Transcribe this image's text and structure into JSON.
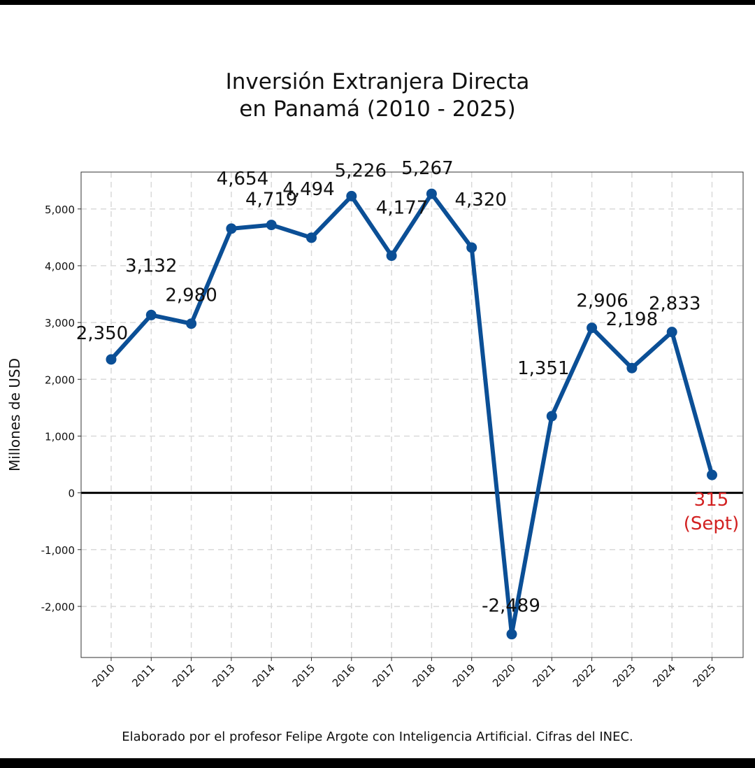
{
  "chart_data": {
    "type": "line",
    "title_line1": "Inversión Extranjera Directa",
    "title_line2": "en Panamá (2010 - 2025)",
    "ylabel": "Millones de USD",
    "ylim": [
      -2900,
      5650
    ],
    "yticks": [
      -2000,
      -1000,
      0,
      1000,
      2000,
      3000,
      4000,
      5000
    ],
    "ytick_labels": [
      "-2,000",
      "-1,000",
      "0",
      "1,000",
      "2,000",
      "3,000",
      "4,000",
      "5,000"
    ],
    "categories": [
      "2010",
      "2011",
      "2012",
      "2013",
      "2014",
      "2015",
      "2016",
      "2017",
      "2018",
      "2019",
      "2020",
      "2021",
      "2022",
      "2023",
      "2024",
      "2025"
    ],
    "series": [
      {
        "name": "Inversión Extranjera Directa",
        "color": "#0b4f96",
        "values": [
          2350,
          3132,
          2980,
          4654,
          4719,
          4494,
          5226,
          4177,
          5267,
          4320,
          -2489,
          1351,
          2906,
          2198,
          2833,
          315
        ],
        "labels": [
          "2,350",
          "3,132",
          "2,980",
          "4,654",
          "4,719",
          "4,494",
          "5,226",
          "4,177",
          "5,267",
          "4,320",
          "-2,489",
          "1,351",
          "2,906",
          "2,198",
          "2,833",
          "315"
        ]
      }
    ],
    "highlight": {
      "index": 15,
      "note": "(Sept)",
      "color": "#d22020"
    },
    "grid": true
  },
  "footer": "Elaborado por el profesor Felipe Argote con Inteligencia Artificial. Cifras del INEC."
}
